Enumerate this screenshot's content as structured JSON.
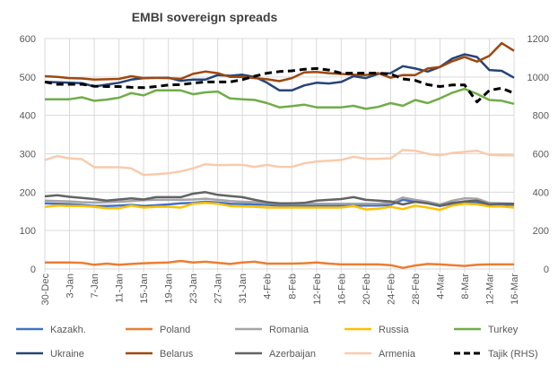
{
  "chart_data": {
    "type": "line",
    "title": "EMBI sovereign spreads",
    "xlabel": "",
    "ylabel": "",
    "ylim": [
      0,
      600
    ],
    "y2lim": [
      0,
      1200
    ],
    "yticks": [
      0,
      100,
      200,
      300,
      400,
      500,
      600
    ],
    "y2ticks": [
      0,
      200,
      400,
      600,
      800,
      1000,
      1200
    ],
    "grid": true,
    "legend_position": "bottom",
    "x": [
      "30-Dec",
      "1-Jan",
      "3-Jan",
      "5-Jan",
      "7-Jan",
      "9-Jan",
      "11-Jan",
      "13-Jan",
      "15-Jan",
      "17-Jan",
      "19-Jan",
      "21-Jan",
      "23-Jan",
      "25-Jan",
      "27-Jan",
      "29-Jan",
      "31-Jan",
      "2-Feb",
      "4-Feb",
      "6-Feb",
      "8-Feb",
      "10-Feb",
      "12-Feb",
      "14-Feb",
      "16-Feb",
      "18-Feb",
      "20-Feb",
      "22-Feb",
      "24-Feb",
      "26-Feb",
      "28-Feb",
      "2-Mar",
      "4-Mar",
      "6-Mar",
      "8-Mar",
      "10-Mar",
      "12-Mar",
      "14-Mar",
      "16-Mar"
    ],
    "xticks": [
      "30-Dec",
      "3-Jan",
      "7-Jan",
      "11-Jan",
      "15-Jan",
      "19-Jan",
      "23-Jan",
      "27-Jan",
      "31-Jan",
      "4-Feb",
      "8-Feb",
      "12-Feb",
      "16-Feb",
      "20-Feb",
      "24-Feb",
      "28-Feb",
      "4-Mar",
      "8-Mar",
      "12-Mar",
      "16-Mar"
    ],
    "series": [
      {
        "name": "Kazakh.",
        "color": "#4472C4",
        "axis": "left",
        "dash": false,
        "values": [
          171,
          170,
          169,
          167,
          164,
          164,
          165,
          167,
          164,
          166,
          168,
          171,
          172,
          175,
          173,
          170,
          169,
          168,
          167,
          165,
          165,
          165,
          165,
          165,
          165,
          165,
          165,
          165,
          167,
          180,
          175,
          171,
          164,
          170,
          175,
          174,
          167,
          167,
          167
        ]
      },
      {
        "name": "Poland",
        "color": "#ED7D31",
        "axis": "left",
        "dash": false,
        "values": [
          17,
          17,
          17,
          16,
          11,
          14,
          11,
          13,
          15,
          16,
          17,
          21,
          17,
          19,
          16,
          13,
          17,
          19,
          14,
          14,
          14,
          15,
          17,
          14,
          12,
          12,
          12,
          12,
          10,
          3,
          9,
          13,
          12,
          10,
          8,
          11,
          12,
          12,
          12
        ]
      },
      {
        "name": "Romania",
        "color": "#A5A5A5",
        "axis": "left",
        "dash": false,
        "values": [
          178,
          177,
          176,
          174,
          173,
          174,
          175,
          177,
          179,
          180,
          180,
          180,
          181,
          183,
          180,
          177,
          175,
          174,
          172,
          170,
          170,
          170,
          170,
          170,
          170,
          170,
          170,
          170,
          172,
          186,
          180,
          175,
          168,
          178,
          184,
          183,
          172,
          171,
          170
        ]
      },
      {
        "name": "Russia",
        "color": "#FFC000",
        "axis": "left",
        "dash": false,
        "values": [
          162,
          165,
          164,
          164,
          162,
          158,
          158,
          165,
          160,
          162,
          162,
          160,
          170,
          172,
          170,
          164,
          163,
          162,
          160,
          160,
          160,
          160,
          160,
          160,
          160,
          164,
          155,
          157,
          162,
          156,
          165,
          160,
          154,
          165,
          170,
          168,
          163,
          163,
          160
        ]
      },
      {
        "name": "Turkey",
        "color": "#70AD47",
        "axis": "left",
        "dash": false,
        "values": [
          442,
          442,
          442,
          447,
          438,
          441,
          446,
          458,
          452,
          465,
          465,
          465,
          455,
          460,
          462,
          444,
          442,
          440,
          432,
          421,
          424,
          428,
          421,
          421,
          421,
          425,
          417,
          422,
          432,
          425,
          440,
          432,
          444,
          459,
          469,
          456,
          440,
          438,
          430
        ]
      },
      {
        "name": "Ukraine",
        "color": "#264478",
        "axis": "left",
        "dash": false,
        "values": [
          487,
          486,
          485,
          484,
          475,
          480,
          485,
          493,
          497,
          498,
          498,
          490,
          493,
          493,
          505,
          503,
          506,
          500,
          485,
          465,
          465,
          478,
          485,
          483,
          487,
          502,
          497,
          508,
          510,
          528,
          522,
          514,
          526,
          548,
          559,
          552,
          518,
          516,
          498
        ]
      },
      {
        "name": "Belarus",
        "color": "#9E480E",
        "axis": "left",
        "dash": false,
        "values": [
          502,
          500,
          497,
          496,
          493,
          494,
          495,
          502,
          497,
          498,
          497,
          495,
          508,
          514,
          510,
          500,
          500,
          497,
          494,
          489,
          497,
          512,
          513,
          510,
          508,
          506,
          505,
          510,
          498,
          505,
          505,
          522,
          526,
          541,
          552,
          540,
          555,
          588,
          568
        ]
      },
      {
        "name": "Azerbaijan",
        "color": "#636363",
        "axis": "left",
        "dash": false,
        "values": [
          189,
          192,
          188,
          185,
          182,
          178,
          181,
          184,
          181,
          187,
          187,
          187,
          196,
          200,
          193,
          190,
          187,
          180,
          174,
          171,
          171,
          172,
          178,
          180,
          182,
          187,
          180,
          178,
          176,
          168,
          175,
          171,
          165,
          172,
          176,
          178,
          168,
          170,
          170
        ]
      },
      {
        "name": "Armenia",
        "color": "#F8CBAD",
        "axis": "left",
        "dash": false,
        "values": [
          284,
          294,
          288,
          286,
          265,
          265,
          265,
          262,
          245,
          247,
          249,
          254,
          262,
          273,
          270,
          271,
          271,
          266,
          271,
          266,
          266,
          275,
          280,
          282,
          284,
          292,
          287,
          287,
          288,
          310,
          308,
          300,
          296,
          302,
          305,
          308,
          297,
          296,
          296
        ]
      },
      {
        "name": "Tajik (RHS)",
        "color": "#000000",
        "axis": "right",
        "dash": true,
        "values": [
          974,
          962,
          962,
          962,
          952,
          950,
          950,
          946,
          944,
          950,
          958,
          960,
          968,
          974,
          974,
          974,
          986,
          1004,
          1020,
          1028,
          1032,
          1040,
          1044,
          1036,
          1020,
          1020,
          1020,
          1020,
          1016,
          990,
          982,
          960,
          950,
          958,
          958,
          870,
          930,
          942,
          915
        ]
      }
    ]
  }
}
